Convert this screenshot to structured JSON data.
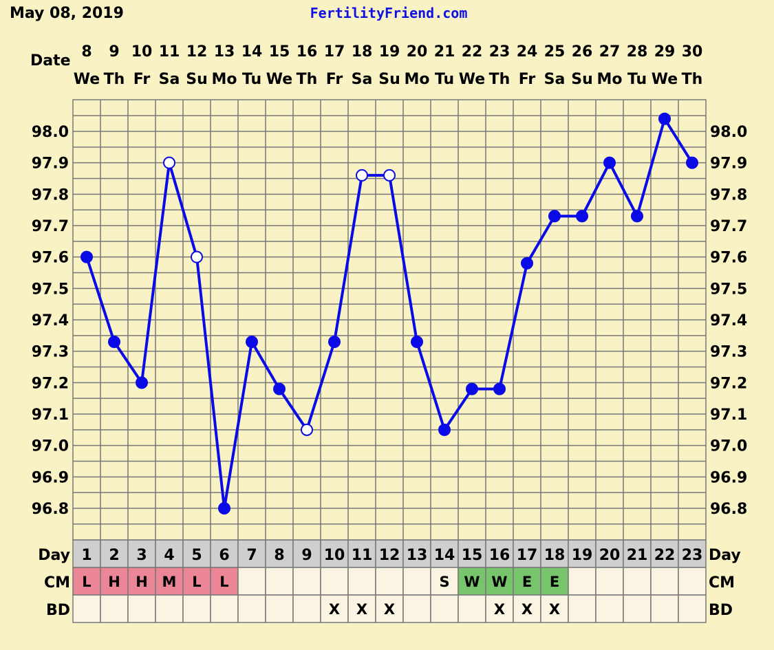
{
  "header": {
    "date": "May 08, 2019",
    "site": "FertilityFriend.com"
  },
  "labels": {
    "date_row": "Date",
    "day_row": "Day",
    "cm_row": "CM",
    "bd_row": "BD"
  },
  "colors": {
    "background": "#f8f2c4",
    "line": "#0a0ae6",
    "site_text": "#1010e0",
    "grid": "#777777",
    "plot_bg": "#f8f2c4",
    "day_cell": "#cfcfcf",
    "empty_cell": "#fcf4e2",
    "cm_red": "#ea8696",
    "cm_green": "#78c46c"
  },
  "chart_data": {
    "type": "line",
    "title": "",
    "ylim": [
      96.7,
      98.1
    ],
    "ytick_labels": [
      "96.8",
      "96.9",
      "97.0",
      "97.1",
      "97.2",
      "97.3",
      "97.4",
      "97.5",
      "97.6",
      "97.7",
      "97.8",
      "97.9",
      "98.0"
    ],
    "dates": [
      "8",
      "9",
      "10",
      "11",
      "12",
      "13",
      "14",
      "15",
      "16",
      "17",
      "18",
      "19",
      "20",
      "21",
      "22",
      "23",
      "24",
      "25",
      "26",
      "27",
      "28",
      "29",
      "30"
    ],
    "weekdays": [
      "We",
      "Th",
      "Fr",
      "Sa",
      "Su",
      "Mo",
      "Tu",
      "We",
      "Th",
      "Fr",
      "Sa",
      "Su",
      "Mo",
      "Tu",
      "We",
      "Th",
      "Fr",
      "Sa",
      "Su",
      "Mo",
      "Tu",
      "We",
      "Th"
    ],
    "cycle_days": [
      "1",
      "2",
      "3",
      "4",
      "5",
      "6",
      "7",
      "8",
      "9",
      "10",
      "11",
      "12",
      "13",
      "14",
      "15",
      "16",
      "17",
      "18",
      "19",
      "20",
      "21",
      "22",
      "23"
    ],
    "series": [
      {
        "temps": [
          97.6,
          97.33,
          97.2,
          97.9,
          97.6,
          96.8,
          97.33,
          97.18,
          97.05,
          97.33,
          97.86,
          97.86,
          97.33,
          97.05,
          97.18,
          97.18,
          97.58,
          97.73,
          97.73,
          97.9,
          97.73,
          98.04,
          97.9
        ],
        "open_points": [
          false,
          false,
          false,
          true,
          true,
          false,
          false,
          false,
          true,
          false,
          true,
          true,
          false,
          false,
          false,
          false,
          false,
          false,
          false,
          false,
          false,
          false,
          false
        ]
      }
    ],
    "cm": [
      "L",
      "H",
      "H",
      "M",
      "L",
      "L",
      "",
      "",
      "",
      "",
      "",
      "",
      "",
      "S",
      "W",
      "W",
      "E",
      "E",
      "",
      "",
      "",
      "",
      ""
    ],
    "cm_color": [
      "red",
      "red",
      "red",
      "red",
      "red",
      "red",
      "",
      "",
      "",
      "",
      "",
      "",
      "",
      "",
      "green",
      "green",
      "green",
      "green",
      "",
      "",
      "",
      "",
      ""
    ],
    "bd": [
      "",
      "",
      "",
      "",
      "",
      "",
      "",
      "",
      "",
      "X",
      "X",
      "X",
      "",
      "",
      "",
      "X",
      "X",
      "X",
      "",
      "",
      "",
      "",
      ""
    ]
  }
}
